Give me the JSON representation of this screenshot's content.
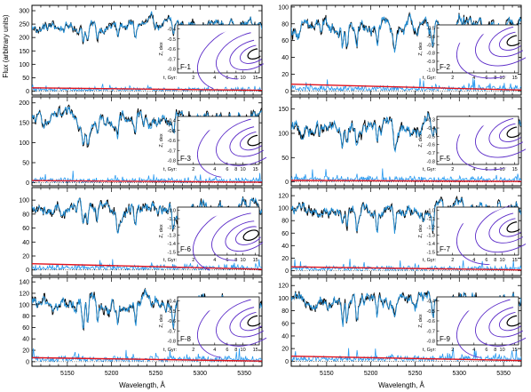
{
  "figure": {
    "ylabel": "Flux (arbitrary units)",
    "xlabel": "Wavelength, Å",
    "x_ticks": [
      5150,
      5200,
      5250,
      5300,
      5350
    ],
    "inset_ylabel": "Z, dex",
    "inset_xlabel_prefix": "t, Gyr:",
    "inset_age_ticks": [
      2,
      4,
      6,
      8,
      10,
      15
    ]
  },
  "colors": {
    "observed": "#000000",
    "model": "#1f8fd8",
    "residual": "#2a9af0",
    "trend": "#e0141e",
    "contour": "#5b2bc8",
    "contour_inner": "#000000"
  },
  "chart_data": [
    {
      "type": "line",
      "title": "F-1",
      "xlim": [
        5110,
        5370
      ],
      "ylim": [
        -15,
        320
      ],
      "y_ticks": [
        0,
        50,
        100,
        150,
        200,
        250,
        300
      ],
      "level": 245,
      "amplitude": 30,
      "trend_start": 12,
      "trend_end": 3,
      "inset_z_ticks": [
        -0.4,
        -0.5,
        -0.6,
        -0.7,
        -0.8
      ],
      "contour_peak": {
        "age": 15,
        "z": -0.65
      }
    },
    {
      "type": "line",
      "title": "F-2",
      "xlim": [
        5110,
        5370
      ],
      "ylim": [
        -5,
        102
      ],
      "y_ticks": [
        0,
        20,
        40,
        60,
        80,
        100
      ],
      "level": 75,
      "amplitude": 14,
      "trend_start": 8,
      "trend_end": 1,
      "inset_z_ticks": [
        -0.5,
        -0.6,
        -0.7,
        -0.8,
        -0.9,
        -1.0
      ],
      "contour_peak": {
        "age": 15,
        "z": -0.65
      }
    },
    {
      "type": "line",
      "title": "F-3",
      "xlim": [
        5110,
        5370
      ],
      "ylim": [
        -8,
        215
      ],
      "y_ticks": [
        0,
        50,
        100,
        150,
        200
      ],
      "level": 160,
      "amplitude": 26,
      "trend_start": 5,
      "trend_end": 1,
      "inset_z_ticks": [
        -0.4,
        -0.5,
        -0.6,
        -0.7,
        -0.8
      ],
      "contour_peak": {
        "age": 15,
        "z": -0.6
      }
    },
    {
      "type": "line",
      "title": "F-5",
      "xlim": [
        5110,
        5370
      ],
      "ylim": [
        -8,
        175
      ],
      "y_ticks": [
        0,
        50,
        100,
        150
      ],
      "level": 108,
      "amplitude": 24,
      "trend_start": 3,
      "trend_end": 1,
      "inset_z_ticks": [
        -0.3,
        -0.4,
        -0.5,
        -0.6,
        -0.7,
        -0.8
      ],
      "contour_peak": {
        "age": 15,
        "z": -0.45
      }
    },
    {
      "type": "line",
      "title": "F-6",
      "xlim": [
        5110,
        5370
      ],
      "ylim": [
        -8,
        118
      ],
      "y_ticks": [
        0,
        20,
        40,
        60,
        80,
        100
      ],
      "level": 88,
      "amplitude": 16,
      "trend_start": 9,
      "trend_end": 1,
      "inset_z_ticks": [
        -1.0,
        -1.1,
        -1.2,
        -1.3,
        -1.4,
        -1.5
      ],
      "contour_peak": {
        "age": 13,
        "z": -1.3
      }
    },
    {
      "type": "line",
      "title": "F-7",
      "xlim": [
        5110,
        5370
      ],
      "ylim": [
        -8,
        133
      ],
      "y_ticks": [
        0,
        20,
        40,
        60,
        80,
        100,
        120
      ],
      "level": 100,
      "amplitude": 16,
      "trend_start": 6,
      "trend_end": 1,
      "inset_z_ticks": [
        -1.0,
        -1.1,
        -1.2,
        -1.3,
        -1.4,
        -1.5
      ],
      "contour_peak": {
        "age": 15,
        "z": -1.2
      }
    },
    {
      "type": "line",
      "title": "F-8",
      "xlim": [
        5110,
        5370
      ],
      "ylim": [
        -8,
        148
      ],
      "y_ticks": [
        0,
        20,
        40,
        60,
        80,
        100,
        120,
        140
      ],
      "level": 100,
      "amplitude": 20,
      "trend_start": 7,
      "trend_end": 1,
      "inset_z_ticks": [
        -0.4,
        -0.5,
        -0.6,
        -0.7,
        -0.8
      ],
      "contour_peak": {
        "age": 15,
        "z": -0.6
      }
    },
    {
      "type": "line",
      "title": "F-9",
      "xlim": [
        5110,
        5370
      ],
      "ylim": [
        -8,
        133
      ],
      "y_ticks": [
        0,
        20,
        40,
        60,
        80,
        100,
        120
      ],
      "level": 95,
      "amplitude": 18,
      "trend_start": 8,
      "trend_end": 1,
      "inset_z_ticks": [
        -0.4,
        -0.5,
        -0.6,
        -0.7,
        -0.8
      ],
      "contour_peak": {
        "age": 15,
        "z": -0.6
      }
    }
  ]
}
